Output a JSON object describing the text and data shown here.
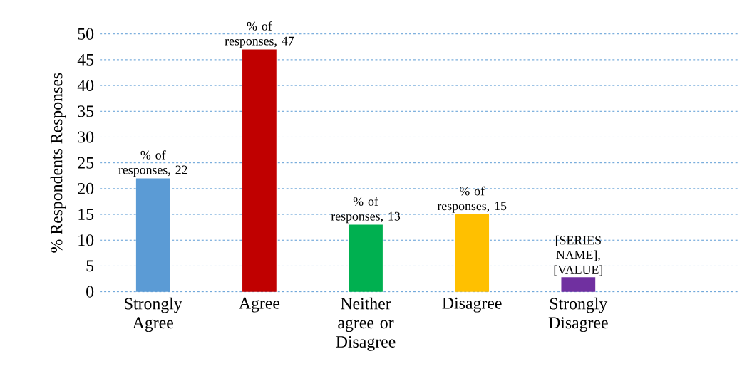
{
  "chart_data": {
    "type": "bar",
    "ylabel": "%    Respondents Responses",
    "categories": [
      "Strongly Agree",
      "Agree",
      "Neither agree or Disagree",
      "Disagree",
      "Strongly Disagree",
      null
    ],
    "values": [
      22,
      47,
      13,
      15,
      2.8,
      null
    ],
    "colors": [
      "#5b9bd5",
      "#c00000",
      "#00b050",
      "#ffc000",
      "#7030a0",
      "#000000"
    ],
    "value_labels": [
      "% of responses, 22",
      "% of responses, 47",
      "% of responses, 13",
      "% of responses, 15",
      "[SERIES NAME], [VALUE]",
      null
    ],
    "ylim": [
      0,
      50
    ],
    "yticks": [
      0,
      5,
      10,
      15,
      20,
      25,
      30,
      35,
      40,
      45,
      50
    ],
    "grid": "y"
  }
}
